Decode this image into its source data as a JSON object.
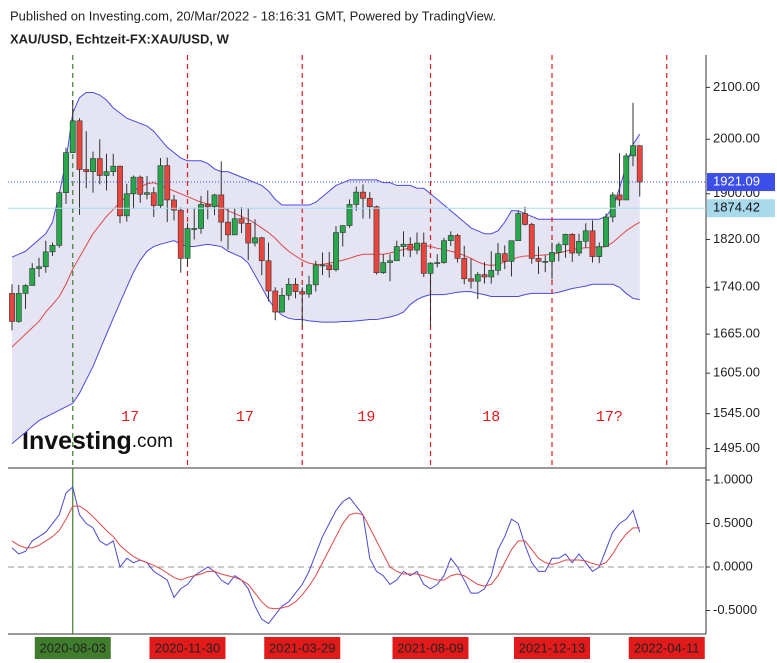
{
  "header": {
    "published": "Published on Investing.com, 20/Mar/2022 - 18:16:31 GMT, Powered by TradingView."
  },
  "watermark": {
    "brand": "Investing",
    "suffix": ".com"
  },
  "chart_data": [
    {
      "type": "candlestick",
      "title": "XAU/USD, Echtzeit-FX:XAU/USD, W",
      "log_scale": true,
      "x": [
        "2020-06-01",
        "2020-06-08",
        "2020-06-15",
        "2020-06-22",
        "2020-06-29",
        "2020-07-06",
        "2020-07-13",
        "2020-07-20",
        "2020-07-27",
        "2020-08-03",
        "2020-08-10",
        "2020-08-17",
        "2020-08-24",
        "2020-08-31",
        "2020-09-07",
        "2020-09-14",
        "2020-09-21",
        "2020-09-28",
        "2020-10-05",
        "2020-10-12",
        "2020-10-19",
        "2020-10-26",
        "2020-11-02",
        "2020-11-09",
        "2020-11-16",
        "2020-11-23",
        "2020-11-30",
        "2020-12-07",
        "2020-12-14",
        "2020-12-21",
        "2020-12-28",
        "2021-01-04",
        "2021-01-11",
        "2021-01-18",
        "2021-01-25",
        "2021-02-01",
        "2021-02-08",
        "2021-02-15",
        "2021-02-22",
        "2021-03-01",
        "2021-03-08",
        "2021-03-15",
        "2021-03-22",
        "2021-03-29",
        "2021-04-05",
        "2021-04-12",
        "2021-04-19",
        "2021-04-26",
        "2021-05-03",
        "2021-05-10",
        "2021-05-17",
        "2021-05-24",
        "2021-05-31",
        "2021-06-07",
        "2021-06-14",
        "2021-06-21",
        "2021-06-28",
        "2021-07-05",
        "2021-07-12",
        "2021-07-19",
        "2021-07-26",
        "2021-08-02",
        "2021-08-09",
        "2021-08-16",
        "2021-08-23",
        "2021-08-30",
        "2021-09-06",
        "2021-09-13",
        "2021-09-20",
        "2021-09-27",
        "2021-10-04",
        "2021-10-11",
        "2021-10-18",
        "2021-10-25",
        "2021-11-01",
        "2021-11-08",
        "2021-11-15",
        "2021-11-22",
        "2021-11-29",
        "2021-12-06",
        "2021-12-13",
        "2021-12-20",
        "2021-12-27",
        "2022-01-03",
        "2022-01-10",
        "2022-01-17",
        "2022-01-24",
        "2022-01-31",
        "2022-02-07",
        "2022-02-14",
        "2022-02-21",
        "2022-02-28",
        "2022-03-07",
        "2022-03-14"
      ],
      "open": [
        1730,
        1685,
        1730,
        1743,
        1771,
        1774,
        1799,
        1810,
        1902,
        1975,
        2035,
        1944,
        1940,
        1964,
        1933,
        1940,
        1950,
        1861,
        1900,
        1930,
        1899,
        1902,
        1879,
        1951,
        1889,
        1871,
        1788,
        1839,
        1839,
        1881,
        1877,
        1898,
        1850,
        1828,
        1856,
        1848,
        1814,
        1823,
        1784,
        1734,
        1700,
        1727,
        1745,
        1733,
        1729,
        1744,
        1777,
        1777,
        1769,
        1832,
        1844,
        1881,
        1903,
        1892,
        1877,
        1764,
        1781,
        1784,
        1808,
        1812,
        1802,
        1814,
        1763,
        1780,
        1781,
        1818,
        1827,
        1788,
        1754,
        1750,
        1761,
        1757,
        1768,
        1796,
        1783,
        1818,
        1865,
        1846,
        1788,
        1783,
        1783,
        1798,
        1811,
        1829,
        1797,
        1817,
        1835,
        1791,
        1808,
        1859,
        1898,
        1889,
        1969,
        1988
      ],
      "high": [
        1745,
        1744,
        1745,
        1780,
        1789,
        1818,
        1815,
        1904,
        1984,
        2075,
        2040,
        2015,
        1977,
        2000,
        1973,
        1973,
        1951,
        1918,
        1933,
        1933,
        1932,
        1912,
        1965,
        1966,
        1898,
        1876,
        1848,
        1875,
        1896,
        1906,
        1900,
        1959,
        1875,
        1875,
        1876,
        1875,
        1855,
        1825,
        1815,
        1740,
        1739,
        1755,
        1755,
        1740,
        1759,
        1784,
        1798,
        1799,
        1843,
        1845,
        1890,
        1913,
        1917,
        1903,
        1879,
        1795,
        1795,
        1818,
        1834,
        1824,
        1832,
        1832,
        1780,
        1795,
        1823,
        1834,
        1830,
        1809,
        1787,
        1765,
        1782,
        1800,
        1814,
        1810,
        1818,
        1870,
        1877,
        1849,
        1808,
        1793,
        1815,
        1815,
        1830,
        1831,
        1830,
        1848,
        1853,
        1815,
        1865,
        1903,
        1974,
        1974,
        2070,
        1989
      ],
      "low": [
        1671,
        1683,
        1705,
        1743,
        1757,
        1764,
        1792,
        1806,
        1882,
        1975,
        1863,
        1910,
        1902,
        1917,
        1906,
        1932,
        1848,
        1851,
        1873,
        1884,
        1890,
        1859,
        1874,
        1850,
        1853,
        1764,
        1775,
        1820,
        1830,
        1855,
        1862,
        1817,
        1803,
        1828,
        1831,
        1785,
        1808,
        1760,
        1717,
        1687,
        1699,
        1719,
        1722,
        1677,
        1723,
        1733,
        1760,
        1756,
        1766,
        1808,
        1840,
        1870,
        1856,
        1856,
        1761,
        1762,
        1750,
        1784,
        1791,
        1790,
        1795,
        1757,
        1678,
        1773,
        1779,
        1809,
        1781,
        1745,
        1738,
        1721,
        1746,
        1746,
        1760,
        1770,
        1758,
        1818,
        1844,
        1779,
        1762,
        1765,
        1753,
        1783,
        1789,
        1782,
        1792,
        1806,
        1781,
        1780,
        1807,
        1850,
        1878,
        1889,
        1950,
        1895
      ],
      "close": [
        1685,
        1730,
        1743,
        1771,
        1774,
        1799,
        1810,
        1902,
        1975,
        2035,
        1944,
        1940,
        1964,
        1933,
        1940,
        1950,
        1861,
        1900,
        1930,
        1899,
        1902,
        1879,
        1951,
        1889,
        1871,
        1788,
        1839,
        1839,
        1881,
        1877,
        1898,
        1850,
        1828,
        1856,
        1848,
        1814,
        1823,
        1784,
        1734,
        1700,
        1727,
        1745,
        1733,
        1729,
        1744,
        1777,
        1777,
        1769,
        1832,
        1844,
        1881,
        1903,
        1892,
        1877,
        1764,
        1781,
        1784,
        1808,
        1812,
        1802,
        1814,
        1763,
        1780,
        1781,
        1818,
        1827,
        1788,
        1754,
        1750,
        1761,
        1757,
        1768,
        1796,
        1783,
        1818,
        1865,
        1846,
        1788,
        1783,
        1783,
        1798,
        1811,
        1829,
        1797,
        1817,
        1835,
        1791,
        1808,
        1859,
        1898,
        1889,
        1969,
        1988,
        1921.09
      ],
      "up_color": "#27a84a",
      "down_color": "#e8453c",
      "bands": {
        "fill": "#e4e4f3",
        "edge_color": "#4a4ae0",
        "middle_color": "#e04848",
        "upper": [
          1790,
          1795,
          1800,
          1810,
          1820,
          1830,
          1850,
          1900,
          1960,
          2050,
          2080,
          2090,
          2090,
          2085,
          2075,
          2060,
          2050,
          2040,
          2035,
          2030,
          2025,
          2015,
          2000,
          1985,
          1975,
          1965,
          1960,
          1960,
          1960,
          1955,
          1945,
          1940,
          1940,
          1935,
          1930,
          1925,
          1920,
          1915,
          1905,
          1890,
          1880,
          1880,
          1880,
          1880,
          1880,
          1885,
          1895,
          1905,
          1915,
          1920,
          1925,
          1925,
          1925,
          1925,
          1925,
          1920,
          1920,
          1915,
          1915,
          1915,
          1910,
          1910,
          1900,
          1890,
          1880,
          1870,
          1860,
          1850,
          1840,
          1835,
          1830,
          1830,
          1835,
          1850,
          1870,
          1870,
          1865,
          1860,
          1855,
          1855,
          1855,
          1855,
          1855,
          1855,
          1855,
          1855,
          1855,
          1855,
          1860,
          1875,
          1910,
          1950,
          1990,
          2010
        ],
        "middle": [
          1645,
          1655,
          1665,
          1675,
          1685,
          1700,
          1712,
          1725,
          1745,
          1770,
          1790,
          1810,
          1830,
          1845,
          1860,
          1872,
          1885,
          1895,
          1905,
          1912,
          1918,
          1920,
          1915,
          1910,
          1905,
          1900,
          1895,
          1890,
          1885,
          1882,
          1880,
          1878,
          1870,
          1865,
          1860,
          1855,
          1848,
          1840,
          1832,
          1822,
          1810,
          1800,
          1792,
          1785,
          1780,
          1778,
          1778,
          1780,
          1782,
          1785,
          1788,
          1792,
          1795,
          1795,
          1795,
          1795,
          1797,
          1800,
          1803,
          1806,
          1808,
          1810,
          1808,
          1805,
          1803,
          1800,
          1797,
          1793,
          1788,
          1782,
          1778,
          1776,
          1778,
          1782,
          1786,
          1790,
          1792,
          1792,
          1793,
          1794,
          1795,
          1797,
          1800,
          1803,
          1805,
          1806,
          1806,
          1806,
          1808,
          1815,
          1825,
          1835,
          1843,
          1850
        ],
        "lower": [
          1502,
          1510,
          1518,
          1527,
          1535,
          1540,
          1545,
          1550,
          1555,
          1560,
          1575,
          1595,
          1615,
          1640,
          1665,
          1690,
          1715,
          1740,
          1765,
          1785,
          1800,
          1808,
          1812,
          1815,
          1818,
          1812,
          1808,
          1808,
          1810,
          1812,
          1810,
          1808,
          1800,
          1795,
          1790,
          1780,
          1760,
          1740,
          1720,
          1705,
          1695,
          1690,
          1688,
          1688,
          1686,
          1685,
          1684,
          1684,
          1684,
          1685,
          1685,
          1686,
          1687,
          1688,
          1688,
          1690,
          1692,
          1695,
          1700,
          1712,
          1720,
          1725,
          1728,
          1728,
          1728,
          1730,
          1732,
          1733,
          1733,
          1730,
          1728,
          1725,
          1725,
          1725,
          1725,
          1725,
          1728,
          1730,
          1730,
          1730,
          1730,
          1732,
          1735,
          1738,
          1740,
          1742,
          1745,
          1745,
          1745,
          1745,
          1740,
          1730,
          1722,
          1720
        ]
      },
      "ylim": [
        1468,
        2165
      ],
      "yticks": [
        {
          "value": 2100,
          "label": "2100.00"
        },
        {
          "value": 2000,
          "label": "2000.00"
        },
        {
          "value": 1900,
          "label": "1900.00"
        },
        {
          "value": 1820,
          "label": "1820.00"
        },
        {
          "value": 1740,
          "label": "1740.00"
        },
        {
          "value": 1665,
          "label": "1665.00"
        },
        {
          "value": 1605,
          "label": "1605.00"
        },
        {
          "value": 1545,
          "label": "1545.00"
        },
        {
          "value": 1495,
          "label": "1495.00"
        }
      ],
      "price_lines": [
        {
          "value": 1921.09,
          "color": "#3b4ee8",
          "text_color": "#ffffff",
          "style": "dotted"
        },
        {
          "value": 1874.42,
          "color": "#a9daec",
          "text_color": "#111111",
          "style": "solid"
        }
      ],
      "x_markers": [
        {
          "date": "2020-08-03",
          "color": "#3f7d2c",
          "lower_pane": true
        },
        {
          "date": "2020-11-30",
          "color": "#e31a1a"
        },
        {
          "date": "2021-03-29",
          "color": "#e31a1a"
        },
        {
          "date": "2021-08-09",
          "color": "#e31a1a"
        },
        {
          "date": "2021-12-13",
          "color": "#e31a1a"
        },
        {
          "date": "2022-04-11",
          "color": "#e31a1a"
        }
      ],
      "annotations": [
        "17",
        "17",
        "19",
        "18",
        "17?"
      ],
      "annotation_color": "#e31a1a"
    },
    {
      "type": "line",
      "series": [
        {
          "color": "#4a4ad0",
          "values": [
            0.22,
            0.15,
            0.18,
            0.3,
            0.35,
            0.4,
            0.5,
            0.6,
            0.85,
            0.92,
            0.6,
            0.5,
            0.45,
            0.3,
            0.25,
            0.3,
            0.0,
            0.1,
            0.05,
            0.08,
            0.05,
            -0.05,
            -0.1,
            -0.15,
            -0.35,
            -0.25,
            -0.2,
            -0.1,
            -0.05,
            0.0,
            -0.05,
            -0.15,
            -0.2,
            -0.1,
            -0.15,
            -0.25,
            -0.45,
            -0.6,
            -0.65,
            -0.55,
            -0.45,
            -0.4,
            -0.3,
            -0.2,
            -0.05,
            0.15,
            0.35,
            0.5,
            0.65,
            0.75,
            0.8,
            0.7,
            0.6,
            0.1,
            -0.05,
            -0.1,
            -0.2,
            -0.15,
            -0.05,
            -0.1,
            -0.05,
            -0.2,
            -0.25,
            -0.2,
            -0.1,
            0.1,
            0.0,
            -0.15,
            -0.3,
            -0.3,
            -0.25,
            -0.1,
            0.2,
            0.35,
            0.55,
            0.5,
            0.25,
            0.05,
            -0.05,
            -0.05,
            0.1,
            0.1,
            0.15,
            0.05,
            0.15,
            0.05,
            -0.05,
            0.0,
            0.2,
            0.4,
            0.5,
            0.55,
            0.65,
            0.4
          ]
        },
        {
          "color": "#e04848",
          "values": [
            0.3,
            0.25,
            0.22,
            0.22,
            0.25,
            0.3,
            0.35,
            0.42,
            0.55,
            0.7,
            0.7,
            0.65,
            0.58,
            0.5,
            0.42,
            0.35,
            0.25,
            0.18,
            0.12,
            0.08,
            0.05,
            0.02,
            -0.02,
            -0.07,
            -0.12,
            -0.15,
            -0.12,
            -0.1,
            -0.08,
            -0.05,
            -0.05,
            -0.08,
            -0.1,
            -0.12,
            -0.15,
            -0.2,
            -0.3,
            -0.4,
            -0.47,
            -0.48,
            -0.47,
            -0.45,
            -0.4,
            -0.32,
            -0.22,
            -0.1,
            0.05,
            0.2,
            0.35,
            0.5,
            0.6,
            0.62,
            0.6,
            0.45,
            0.3,
            0.15,
            0.0,
            -0.05,
            -0.08,
            -0.08,
            -0.08,
            -0.1,
            -0.13,
            -0.15,
            -0.15,
            -0.1,
            -0.08,
            -0.1,
            -0.15,
            -0.2,
            -0.22,
            -0.2,
            -0.1,
            0.05,
            0.2,
            0.3,
            0.3,
            0.2,
            0.1,
            0.05,
            0.03,
            0.05,
            0.08,
            0.08,
            0.08,
            0.07,
            0.04,
            0.02,
            0.05,
            0.15,
            0.28,
            0.38,
            0.45,
            0.45
          ]
        }
      ],
      "ylim": [
        -0.77,
        1.115
      ],
      "yticks": [
        {
          "value": 1,
          "label": "1.0000"
        },
        {
          "value": 0.5,
          "label": "0.5000"
        },
        {
          "value": 0,
          "label": "0.0000"
        },
        {
          "value": -0.5,
          "label": "-0.5000"
        }
      ],
      "reference_line": 0
    }
  ]
}
